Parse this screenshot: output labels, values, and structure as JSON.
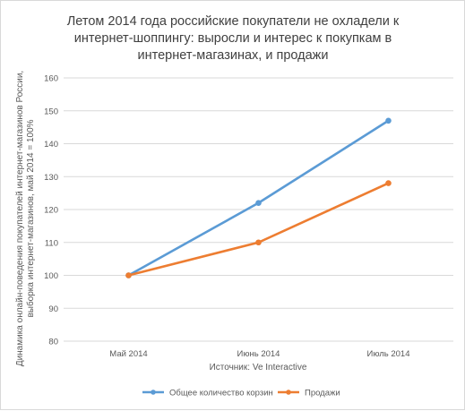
{
  "chart_data": {
    "type": "line",
    "title_lines": [
      "Летом 2014 года российские покупатели не охладели к",
      "интернет-шоппингу: выросли и интерес к покупкам в",
      "интернет-магазинах, и продажи"
    ],
    "categories": [
      "Май 2014",
      "Июнь 2014",
      "Июль 2014"
    ],
    "series": [
      {
        "name": "Общее количество корзин",
        "color": "#5b9bd5",
        "values": [
          100,
          122,
          147
        ]
      },
      {
        "name": "Продажи",
        "color": "#ed7d31",
        "values": [
          100,
          110,
          128
        ]
      }
    ],
    "xlabel": "Источник: Ve Interactive",
    "ylabel_lines": [
      "Динамика онлайн-поведения покупателей интернет-магазинов России,",
      "выборка интернет-магазинов, май 2014 = 100%"
    ],
    "ylim": [
      80,
      160
    ],
    "yticks": [
      80,
      90,
      100,
      110,
      120,
      130,
      140,
      150,
      160
    ],
    "grid": "horizontal",
    "legend_position": "bottom"
  }
}
